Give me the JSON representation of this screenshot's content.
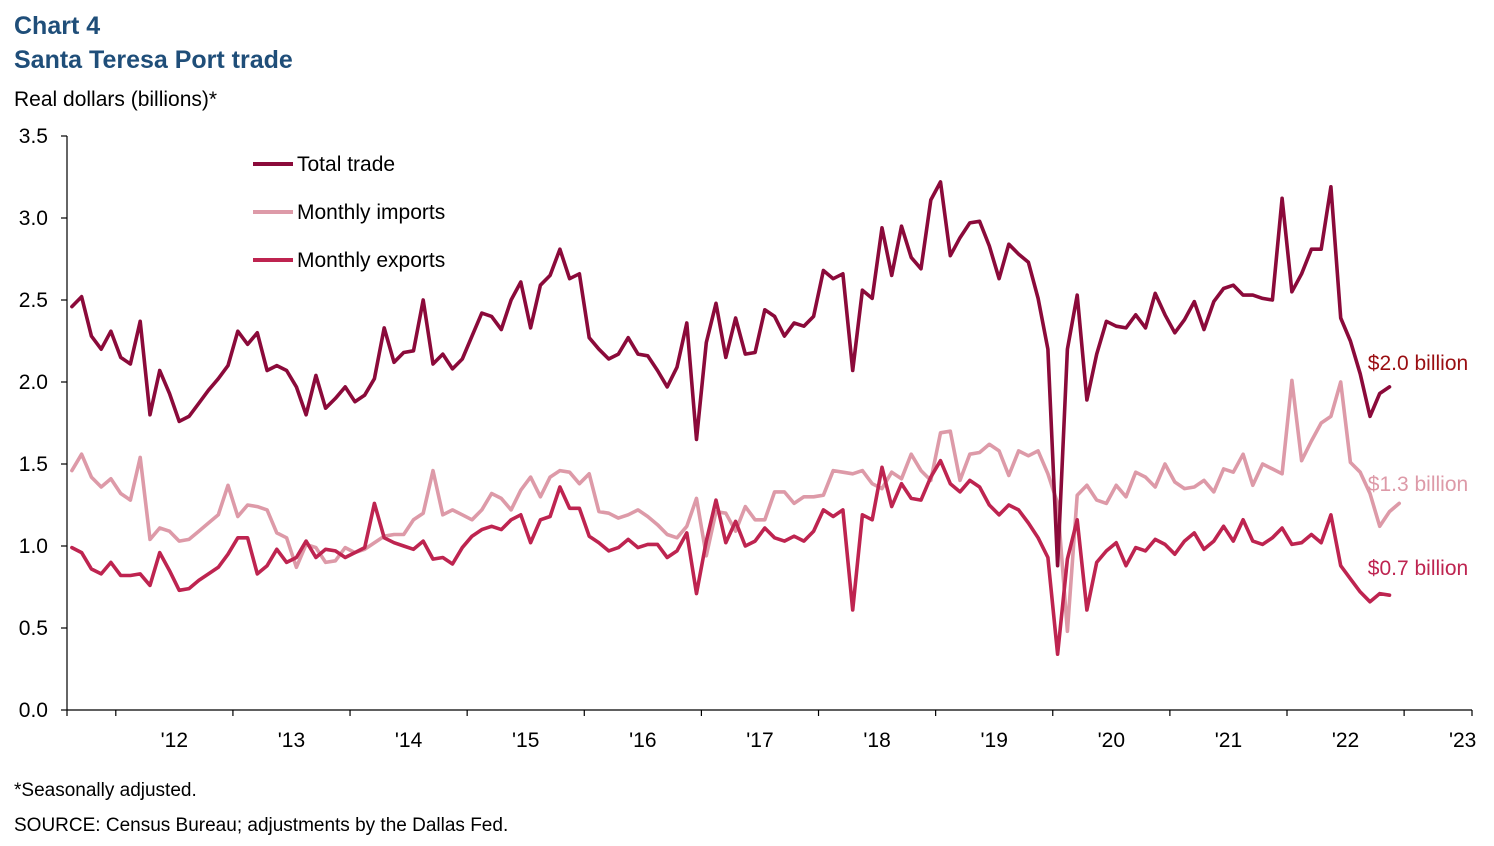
{
  "header": {
    "chart_number": "Chart 4",
    "title": "Santa Teresa Port trade"
  },
  "footer": {
    "note": "*Seasonally adjusted.",
    "source": "SOURCE: Census Bureau; adjustments  by the Dallas Fed."
  },
  "chart_data": {
    "type": "line",
    "title": "Santa Teresa Port trade",
    "ylabel": "Real dollars (billions)*",
    "xlabel": "",
    "ylim": [
      0,
      3.5
    ],
    "yticks": [
      "0.0",
      "0.5",
      "1.0",
      "1.5",
      "2.0",
      "2.5",
      "3.0",
      "3.5"
    ],
    "x_start": "2011-08",
    "x_end": "2023-04",
    "xtick_labels": [
      "'12",
      "'13",
      "'14",
      "'15",
      "'16",
      "'17",
      "'18",
      "'19",
      "'20",
      "'21",
      "'22",
      "'23"
    ],
    "grid": false,
    "legend_position": "top-left",
    "colors": {
      "total": "#8b0a3a",
      "imports": "#dd9aa8",
      "exports": "#be2450"
    },
    "series": [
      {
        "name": "Total trade",
        "end_label": "$2.0 billion",
        "end_label_color": "#9a0e12",
        "values": [
          2.46,
          2.52,
          2.28,
          2.2,
          2.31,
          2.15,
          2.11,
          2.37,
          1.8,
          2.07,
          1.93,
          1.76,
          1.79,
          1.87,
          1.95,
          2.02,
          2.1,
          2.31,
          2.23,
          2.3,
          2.07,
          2.1,
          2.07,
          1.97,
          1.8,
          2.04,
          1.84,
          1.9,
          1.97,
          1.88,
          1.92,
          2.02,
          2.33,
          2.12,
          2.18,
          2.19,
          2.5,
          2.11,
          2.17,
          2.08,
          2.14,
          2.28,
          2.42,
          2.4,
          2.32,
          2.5,
          2.61,
          2.33,
          2.59,
          2.65,
          2.81,
          2.63,
          2.66,
          2.27,
          2.2,
          2.14,
          2.17,
          2.27,
          2.17,
          2.16,
          2.07,
          1.97,
          2.09,
          2.36,
          1.65,
          2.24,
          2.48,
          2.15,
          2.39,
          2.17,
          2.18,
          2.44,
          2.4,
          2.28,
          2.36,
          2.34,
          2.4,
          2.68,
          2.63,
          2.66,
          2.07,
          2.56,
          2.51,
          2.94,
          2.65,
          2.95,
          2.76,
          2.69,
          3.11,
          3.22,
          2.77,
          2.88,
          2.97,
          2.98,
          2.83,
          2.63,
          2.84,
          2.78,
          2.73,
          2.51,
          2.2,
          0.88,
          2.2,
          2.53,
          1.89,
          2.17,
          2.37,
          2.34,
          2.33,
          2.41,
          2.33,
          2.54,
          2.41,
          2.3,
          2.38,
          2.49,
          2.32,
          2.49,
          2.57,
          2.59,
          2.53,
          2.53,
          2.51,
          2.5,
          3.12,
          2.55,
          2.66,
          2.81,
          2.81,
          3.19,
          2.39,
          2.25,
          2.05,
          1.79,
          1.93,
          1.97
        ]
      },
      {
        "name": "Monthly imports",
        "end_label": "$1.3 billion",
        "end_label_color": "#dd9aa8",
        "values": [
          1.46,
          1.56,
          1.42,
          1.36,
          1.41,
          1.32,
          1.28,
          1.54,
          1.04,
          1.11,
          1.09,
          1.03,
          1.04,
          1.09,
          1.14,
          1.19,
          1.37,
          1.18,
          1.25,
          1.24,
          1.22,
          1.08,
          1.05,
          0.87,
          1.01,
          0.99,
          0.9,
          0.91,
          0.99,
          0.96,
          0.98,
          1.02,
          1.06,
          1.07,
          1.07,
          1.16,
          1.2,
          1.46,
          1.19,
          1.22,
          1.19,
          1.16,
          1.22,
          1.32,
          1.29,
          1.22,
          1.34,
          1.42,
          1.3,
          1.42,
          1.46,
          1.45,
          1.38,
          1.44,
          1.21,
          1.2,
          1.17,
          1.19,
          1.22,
          1.18,
          1.13,
          1.07,
          1.05,
          1.12,
          1.29,
          0.94,
          1.21,
          1.2,
          1.09,
          1.24,
          1.16,
          1.16,
          1.33,
          1.33,
          1.26,
          1.3,
          1.3,
          1.31,
          1.46,
          1.45,
          1.44,
          1.46,
          1.38,
          1.35,
          1.45,
          1.41,
          1.56,
          1.46,
          1.4,
          1.69,
          1.7,
          1.4,
          1.56,
          1.57,
          1.62,
          1.58,
          1.43,
          1.58,
          1.55,
          1.58,
          1.44,
          1.26,
          0.48,
          1.31,
          1.37,
          1.28,
          1.26,
          1.37,
          1.3,
          1.45,
          1.42,
          1.36,
          1.5,
          1.39,
          1.35,
          1.36,
          1.4,
          1.33,
          1.47,
          1.45,
          1.56,
          1.37,
          1.5,
          1.47,
          1.44,
          2.01,
          1.52,
          1.64,
          1.75,
          1.79,
          2.0,
          1.51,
          1.45,
          1.32,
          1.12,
          1.21,
          1.26
        ]
      },
      {
        "name": "Monthly exports",
        "end_label": "$0.7 billion",
        "end_label_color": "#be2450",
        "values": [
          0.99,
          0.96,
          0.86,
          0.83,
          0.9,
          0.82,
          0.82,
          0.83,
          0.76,
          0.96,
          0.85,
          0.73,
          0.74,
          0.79,
          0.83,
          0.87,
          0.95,
          1.05,
          1.05,
          0.83,
          0.88,
          0.98,
          0.9,
          0.93,
          1.03,
          0.93,
          0.98,
          0.97,
          0.93,
          0.96,
          0.99,
          1.26,
          1.05,
          1.02,
          1.0,
          0.98,
          1.03,
          0.92,
          0.93,
          0.89,
          0.99,
          1.06,
          1.1,
          1.12,
          1.1,
          1.16,
          1.19,
          1.02,
          1.16,
          1.18,
          1.36,
          1.23,
          1.23,
          1.06,
          1.02,
          0.97,
          0.99,
          1.04,
          0.99,
          1.01,
          1.01,
          0.93,
          0.97,
          1.08,
          0.71,
          1.03,
          1.28,
          1.02,
          1.15,
          1.0,
          1.03,
          1.11,
          1.05,
          1.03,
          1.06,
          1.03,
          1.09,
          1.22,
          1.18,
          1.22,
          0.61,
          1.19,
          1.16,
          1.48,
          1.24,
          1.38,
          1.29,
          1.28,
          1.42,
          1.52,
          1.38,
          1.33,
          1.4,
          1.36,
          1.25,
          1.19,
          1.25,
          1.22,
          1.14,
          1.05,
          0.93,
          0.34,
          0.92,
          1.16,
          0.61,
          0.9,
          0.97,
          1.02,
          0.88,
          0.99,
          0.97,
          1.04,
          1.01,
          0.95,
          1.03,
          1.08,
          0.98,
          1.03,
          1.12,
          1.03,
          1.16,
          1.03,
          1.01,
          1.05,
          1.11,
          1.01,
          1.02,
          1.07,
          1.02,
          1.19,
          0.88,
          0.8,
          0.72,
          0.66,
          0.71,
          0.7
        ]
      }
    ]
  }
}
